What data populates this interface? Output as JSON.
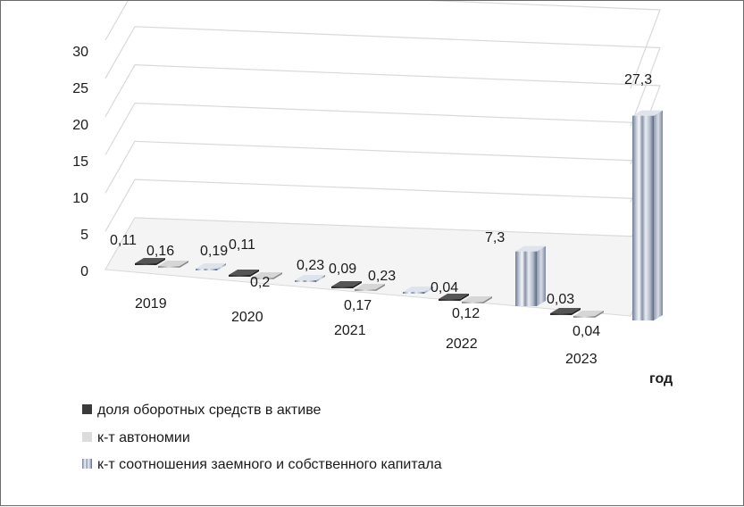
{
  "chart_data": {
    "type": "bar",
    "style": "3d-clustered",
    "title": "",
    "xlabel": "год",
    "ylabel": "",
    "ylim": [
      0,
      30
    ],
    "yticks": [
      "0",
      "5",
      "10",
      "15",
      "20",
      "25",
      "30"
    ],
    "categories": [
      "2019",
      "2020",
      "2021",
      "2022",
      "2023"
    ],
    "grid": true,
    "legend": "bottom-left",
    "series": [
      {
        "name": "доля оборотных средств в активе",
        "values": [
          0.11,
          0.11,
          0.09,
          0.04,
          0.03
        ],
        "labels": [
          "0,11",
          "0,11",
          "0,09",
          "0,04",
          "0,03"
        ],
        "color": "#3a3a3a"
      },
      {
        "name": "к-т автономии",
        "values": [
          0.16,
          0.2,
          0.17,
          0.12,
          0.04
        ],
        "labels": [
          "0,16",
          "0,2",
          "0,17",
          "0,12",
          "0,04"
        ],
        "color": "#bdbdbd"
      },
      {
        "name": "к-т соотношения заемного и собственного капитала",
        "values": [
          0.19,
          0.23,
          0.23,
          7.3,
          27.3
        ],
        "labels": [
          "0,19",
          "0,23",
          "0,23",
          "7,3",
          "27,3"
        ],
        "color": "#a9b4c6"
      }
    ]
  }
}
